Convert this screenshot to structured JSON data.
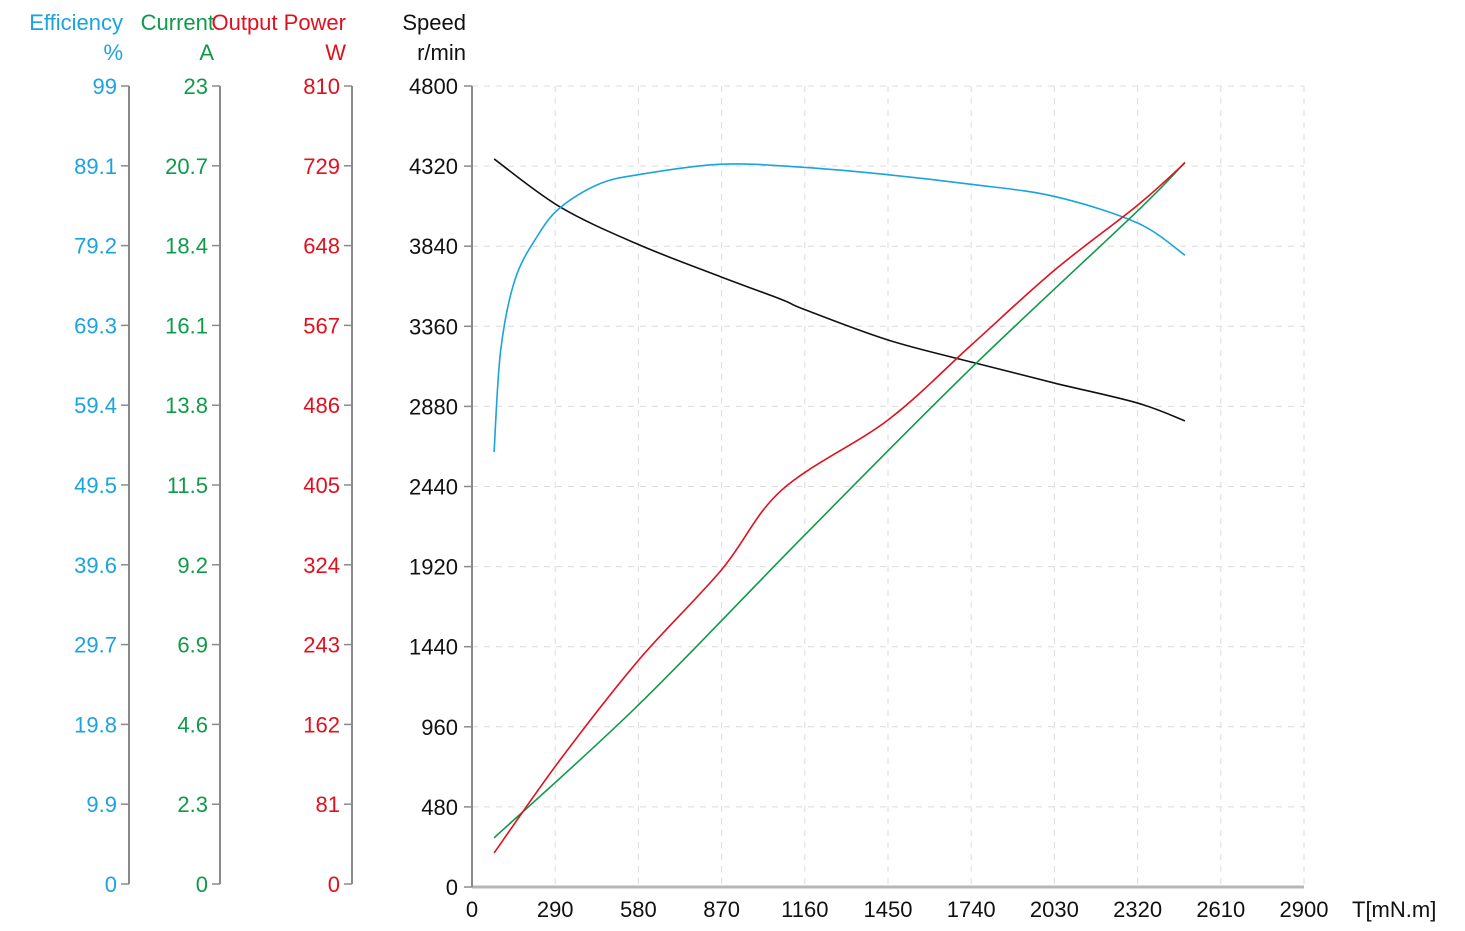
{
  "chart_data": {
    "type": "line",
    "title": "",
    "xlabel": "T[mN.m]",
    "xlim": [
      0,
      2900
    ],
    "x_ticks": [
      "0",
      "290",
      "580",
      "870",
      "1160",
      "1450",
      "1740",
      "2030",
      "2320",
      "2610",
      "2900"
    ],
    "grid": true,
    "legend": "none (colored multi-axis titles)",
    "axes": [
      {
        "id": "efficiency",
        "title": "Efficiency",
        "unit": "%",
        "color": "#1aa3e0",
        "ylim": [
          0,
          99
        ],
        "ticks": [
          "99",
          "89.1",
          "79.2",
          "69.3",
          "59.4",
          "49.5",
          "39.6",
          "29.7",
          "19.8",
          "9.9",
          "0"
        ]
      },
      {
        "id": "current",
        "title": "Current",
        "unit": "A",
        "color": "#0f9a48",
        "ylim": [
          0,
          23
        ],
        "ticks": [
          "23",
          "20.7",
          "18.4",
          "16.1",
          "13.8",
          "11.5",
          "9.2",
          "6.9",
          "4.6",
          "2.3",
          "0"
        ]
      },
      {
        "id": "power",
        "title": "Output Power",
        "unit": "W",
        "color": "#e0101e",
        "ylim": [
          0,
          810
        ],
        "ticks": [
          "810",
          "729",
          "648",
          "567",
          "486",
          "405",
          "324",
          "243",
          "162",
          "81",
          "0"
        ]
      },
      {
        "id": "speed",
        "title": "Speed",
        "unit": "r/min",
        "color": "#111111",
        "ylim": [
          0,
          4800
        ],
        "ticks": [
          "4800",
          "4320",
          "3840",
          "3360",
          "2880",
          "2440",
          "1920",
          "1440",
          "960",
          "480",
          "0"
        ]
      }
    ],
    "series": [
      {
        "name": "Speed",
        "axis": "speed",
        "color": "#111111",
        "x": [
          77,
          307,
          580,
          870,
          1080,
          1160,
          1450,
          1740,
          2030,
          2320,
          2485
        ],
        "values": [
          4363,
          4075,
          3850,
          3655,
          3520,
          3460,
          3278,
          3146,
          3020,
          2900,
          2793
        ]
      },
      {
        "name": "Efficiency",
        "axis": "efficiency",
        "color": "#1aa3e0",
        "x": [
          77,
          100,
          150,
          230,
          307,
          440,
          580,
          870,
          1160,
          1450,
          1740,
          2030,
          2320,
          2485
        ],
        "values": [
          53.6,
          66.2,
          75.0,
          80.5,
          83.9,
          86.8,
          88.0,
          89.3,
          88.9,
          88.0,
          86.8,
          85.3,
          82.0,
          78.0
        ]
      },
      {
        "name": "Current",
        "axis": "current",
        "color": "#0f9a48",
        "x": [
          77,
          580,
          1160,
          1740,
          2320,
          2485
        ],
        "values": [
          1.33,
          5.16,
          10.06,
          14.87,
          19.4,
          20.8
        ]
      },
      {
        "name": "Output Power",
        "axis": "power",
        "color": "#e0101e",
        "x": [
          77,
          307,
          580,
          870,
          1080,
          1450,
          1740,
          2030,
          2320,
          2485
        ],
        "values": [
          31.5,
          126,
          227,
          319,
          400,
          471,
          547,
          623,
          689,
          732
        ]
      }
    ]
  }
}
